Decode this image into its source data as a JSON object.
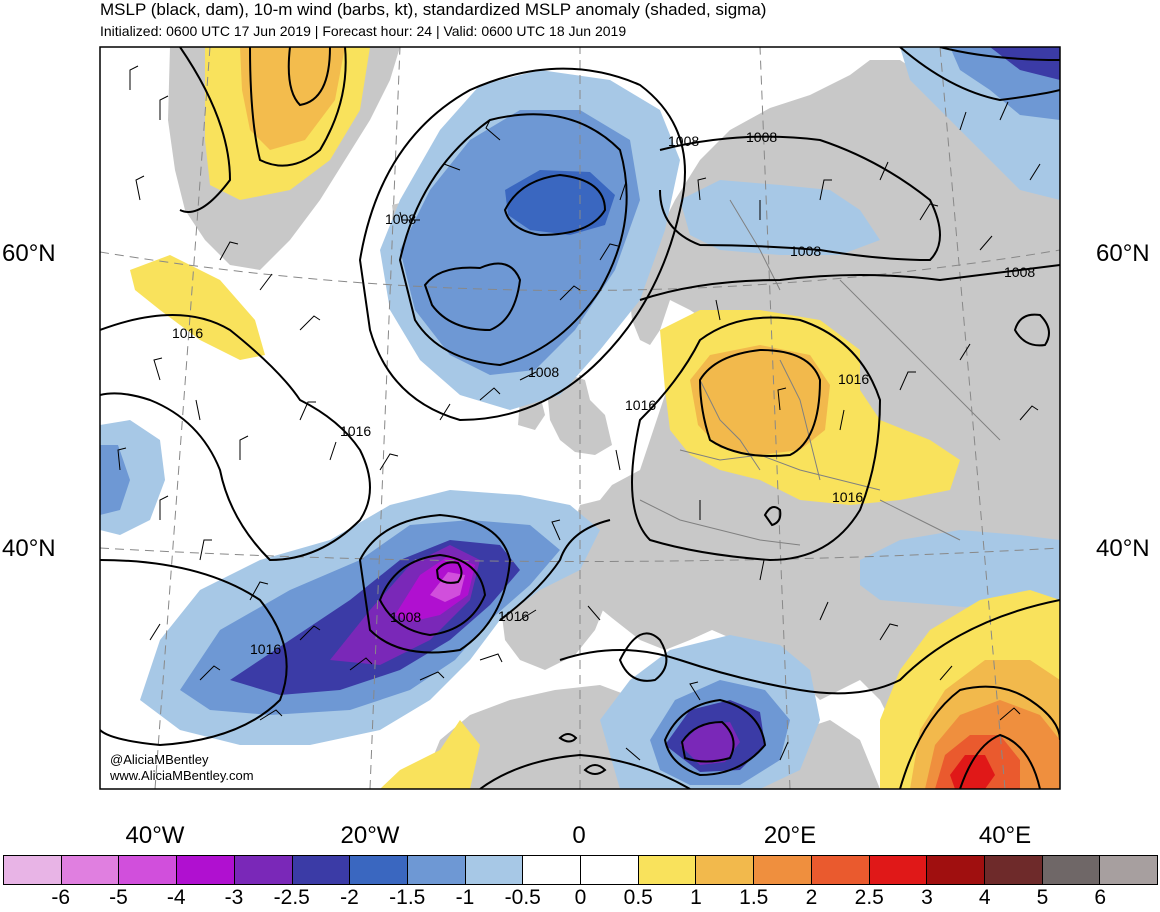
{
  "title": "MSLP (black, dam), 10-m wind (barbs, kt), standardized MSLP anomaly (shaded, sigma)",
  "subtitle": "Initialized: 0600 UTC 17 Jun 2019 | Forecast hour: 24 | Valid: 0600 UTC 18 Jun 2019",
  "latitude_labels": {
    "lat60_left": "60°N",
    "lat60_right": "60°N",
    "lat40_left": "40°N",
    "lat40_right": "40°N"
  },
  "longitude_labels": [
    "40°W",
    "20°W",
    "0",
    "20°E",
    "40°E"
  ],
  "contour_labels": {
    "c1": "1008",
    "c2": "1008",
    "c3": "1008",
    "c4": "1008",
    "c5": "1008",
    "c6": "1008",
    "c7": "1008",
    "c8": "1016",
    "c9": "1016",
    "c10": "1016",
    "c11": "1016",
    "c12": "1016",
    "c13": "1016",
    "c14": "1016"
  },
  "credit": {
    "handle": "@AliciaMBentley",
    "site": "www.AliciaMBentley.com"
  },
  "colorbar": {
    "labels": [
      "-6",
      "-5",
      "-4",
      "-3",
      "-2.5",
      "-2",
      "-1.5",
      "-1",
      "-0.5",
      "0",
      "0.5",
      "1",
      "1.5",
      "2",
      "2.5",
      "3",
      "4",
      "5",
      "6"
    ],
    "colors": [
      "#e8b4e6",
      "#e07fe0",
      "#d14fdc",
      "#b010d0",
      "#7a28b8",
      "#3b3ba6",
      "#3a67c0",
      "#6e98d4",
      "#a7c8e6",
      "#ffffff",
      "#ffffff",
      "#f9e25c",
      "#f2b94c",
      "#ef8f3e",
      "#ea5a2e",
      "#e01818",
      "#a00f0f",
      "#6e2a2a",
      "#6f6767",
      "#a79f9f"
    ]
  },
  "colors": {
    "land": "#c8c8c8",
    "ocean": "#ffffff",
    "contour": "#000000",
    "barb": "#000000"
  }
}
